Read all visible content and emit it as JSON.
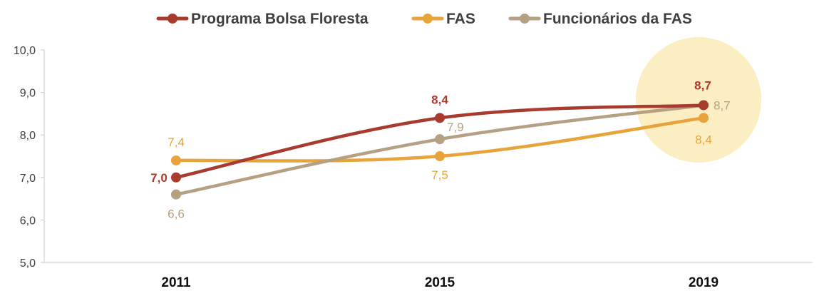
{
  "chart_data": {
    "type": "line",
    "categories": [
      "2011",
      "2015",
      "2019"
    ],
    "ylim": [
      5.0,
      10.0
    ],
    "yticks": [
      "5,0",
      "6,0",
      "7,0",
      "8,0",
      "9,0",
      "10,0"
    ],
    "grid": false,
    "legend_position": "top-center",
    "highlight_category": "2019",
    "series": [
      {
        "name": "Programa Bolsa Floresta",
        "color": "#a83a2e",
        "values": [
          7.0,
          8.4,
          8.7
        ],
        "labels": [
          "7,0",
          "8,4",
          "8,7"
        ]
      },
      {
        "name": "FAS",
        "color": "#e8a33a",
        "values": [
          7.4,
          7.5,
          8.4
        ],
        "labels": [
          "7,4",
          "7,5",
          "8,4"
        ]
      },
      {
        "name": "Funcionários da FAS",
        "color": "#b5a083",
        "values": [
          6.6,
          7.9,
          8.7
        ],
        "labels": [
          "6,6",
          "7,9",
          "8,7"
        ]
      }
    ],
    "highlight_color": "#fbeec2"
  }
}
